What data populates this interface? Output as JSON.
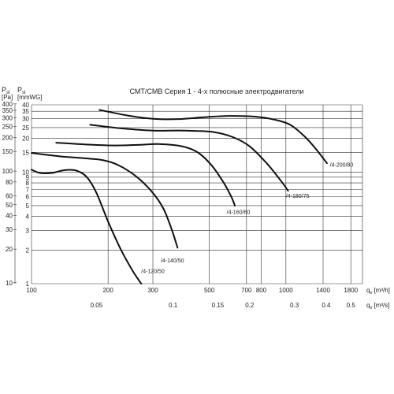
{
  "chart_data": {
    "type": "line",
    "title": "CMT/CMB   Серия 1 - 4-х полюсные электродвигатели",
    "left_axis_labels": {
      "pa_symbol": "P",
      "pa_subscript": "st",
      "pa_unit": "[Pa]",
      "mm_symbol": "P",
      "mm_subscript": "st",
      "mm_unit": "[mmWG]"
    },
    "x_axis_m3h": {
      "label": "q",
      "subscript": "v",
      "unit": "[m³/h]",
      "scale": "log",
      "range": [
        100,
        2000
      ],
      "ticks": [
        100,
        200,
        300,
        500,
        700,
        800,
        1000,
        1400,
        1800
      ]
    },
    "x_axis_m3s": {
      "label": "q",
      "subscript": "v",
      "unit": "[m³/s]",
      "scale": "log",
      "ticks": [
        0.05,
        0.1,
        0.15,
        0.2,
        0.3,
        0.4,
        0.5
      ]
    },
    "y_axis_mmwg": {
      "scale": "log",
      "range": [
        1,
        40
      ],
      "ticks": [
        1,
        2,
        3,
        4,
        5,
        6,
        7,
        8,
        9,
        10,
        15,
        20,
        25,
        30,
        35,
        40
      ]
    },
    "y_axis_pa": {
      "scale": "log",
      "ticks": [
        10,
        20,
        30,
        40,
        50,
        60,
        80,
        100,
        150,
        200,
        250,
        300,
        350,
        400
      ]
    },
    "grid": true,
    "series": [
      {
        "name": "/4-120/50",
        "points": [
          [
            100,
            10.5
          ],
          [
            108,
            9.8
          ],
          [
            120,
            9.8
          ],
          [
            135,
            10.4
          ],
          [
            150,
            10.3
          ],
          [
            165,
            9.0
          ],
          [
            180,
            6.5
          ],
          [
            200,
            3.6
          ],
          [
            225,
            2.0
          ],
          [
            250,
            1.3
          ],
          [
            270,
            1.0
          ]
        ],
        "label_at": [
          270,
          1.25
        ]
      },
      {
        "name": "/4-140/50",
        "points": [
          [
            100,
            14.8
          ],
          [
            130,
            13.8
          ],
          [
            160,
            13.3
          ],
          [
            190,
            12.8
          ],
          [
            220,
            11.5
          ],
          [
            260,
            9.0
          ],
          [
            300,
            6.5
          ],
          [
            330,
            4.7
          ],
          [
            355,
            3.1
          ],
          [
            375,
            2.1
          ]
        ],
        "label_at": [
          322,
          1.55
        ]
      },
      {
        "name": "/4-160/60",
        "points": [
          [
            125,
            18.3
          ],
          [
            160,
            17.7
          ],
          [
            210,
            17.3
          ],
          [
            260,
            17.5
          ],
          [
            320,
            17.8
          ],
          [
            390,
            17.0
          ],
          [
            450,
            15.0
          ],
          [
            510,
            11.5
          ],
          [
            570,
            8.0
          ],
          [
            610,
            6.0
          ],
          [
            630,
            5.0
          ]
        ],
        "label_at": [
          585,
          4.2
        ]
      },
      {
        "name": "/4-180/75",
        "points": [
          [
            170,
            26.5
          ],
          [
            230,
            24.5
          ],
          [
            300,
            23.5
          ],
          [
            400,
            23.5
          ],
          [
            520,
            22.8
          ],
          [
            620,
            20.5
          ],
          [
            720,
            17.0
          ],
          [
            840,
            12.0
          ],
          [
            950,
            8.5
          ],
          [
            1020,
            6.8
          ]
        ],
        "label_at": [
          1000,
          5.9
        ]
      },
      {
        "name": "/4-200/80",
        "points": [
          [
            185,
            36.0
          ],
          [
            240,
            32.0
          ],
          [
            300,
            30.0
          ],
          [
            380,
            29.8
          ],
          [
            480,
            31.0
          ],
          [
            600,
            31.8
          ],
          [
            760,
            31.3
          ],
          [
            900,
            29.5
          ],
          [
            1040,
            26.5
          ],
          [
            1180,
            21.0
          ],
          [
            1300,
            16.5
          ],
          [
            1450,
            12.0
          ]
        ],
        "label_at": [
          1490,
          11.2
        ]
      }
    ]
  }
}
